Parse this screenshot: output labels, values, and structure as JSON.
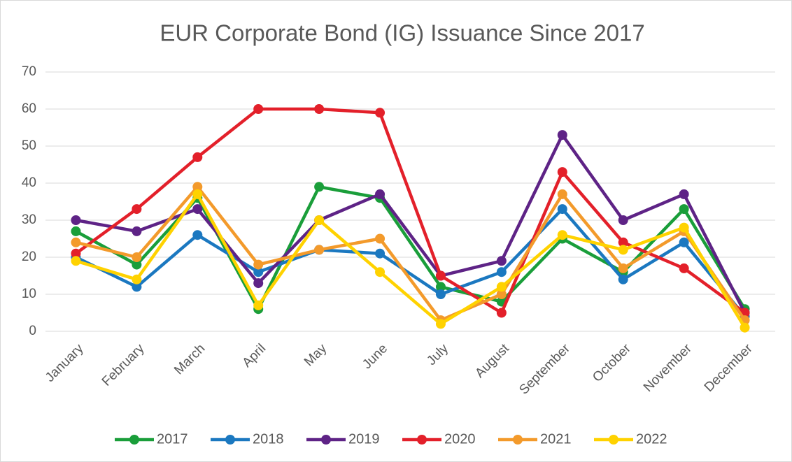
{
  "chart_data": {
    "type": "line",
    "title": "EUR Corporate Bond (IG) Issuance Since 2017",
    "categories": [
      "January",
      "February",
      "March",
      "April",
      "May",
      "June",
      "July",
      "August",
      "September",
      "October",
      "November",
      "December"
    ],
    "series": [
      {
        "name": "2017",
        "color": "#1a9e3a",
        "values": [
          27,
          18,
          36,
          6,
          39,
          36,
          12,
          8,
          25,
          16,
          33,
          6
        ]
      },
      {
        "name": "2018",
        "color": "#1b78c0",
        "values": [
          20,
          12,
          26,
          16,
          22,
          21,
          10,
          16,
          33,
          14,
          24,
          4
        ]
      },
      {
        "name": "2019",
        "color": "#5e2386",
        "values": [
          30,
          27,
          33,
          13,
          30,
          37,
          15,
          19,
          53,
          30,
          37,
          5
        ]
      },
      {
        "name": "2020",
        "color": "#e3202a",
        "values": [
          21,
          33,
          47,
          60,
          60,
          59,
          15,
          5,
          43,
          24,
          17,
          5
        ]
      },
      {
        "name": "2021",
        "color": "#f39a2b",
        "values": [
          24,
          20,
          39,
          18,
          22,
          25,
          3,
          10,
          37,
          17,
          27,
          3
        ]
      },
      {
        "name": "2022",
        "color": "#ffd200",
        "values": [
          19,
          14,
          37,
          7,
          30,
          16,
          2,
          12,
          26,
          22,
          28,
          1
        ]
      }
    ],
    "ylim": [
      0,
      70
    ],
    "yticks": [
      0,
      10,
      20,
      30,
      40,
      50,
      60,
      70
    ],
    "grid": true,
    "legend": "bottom"
  }
}
